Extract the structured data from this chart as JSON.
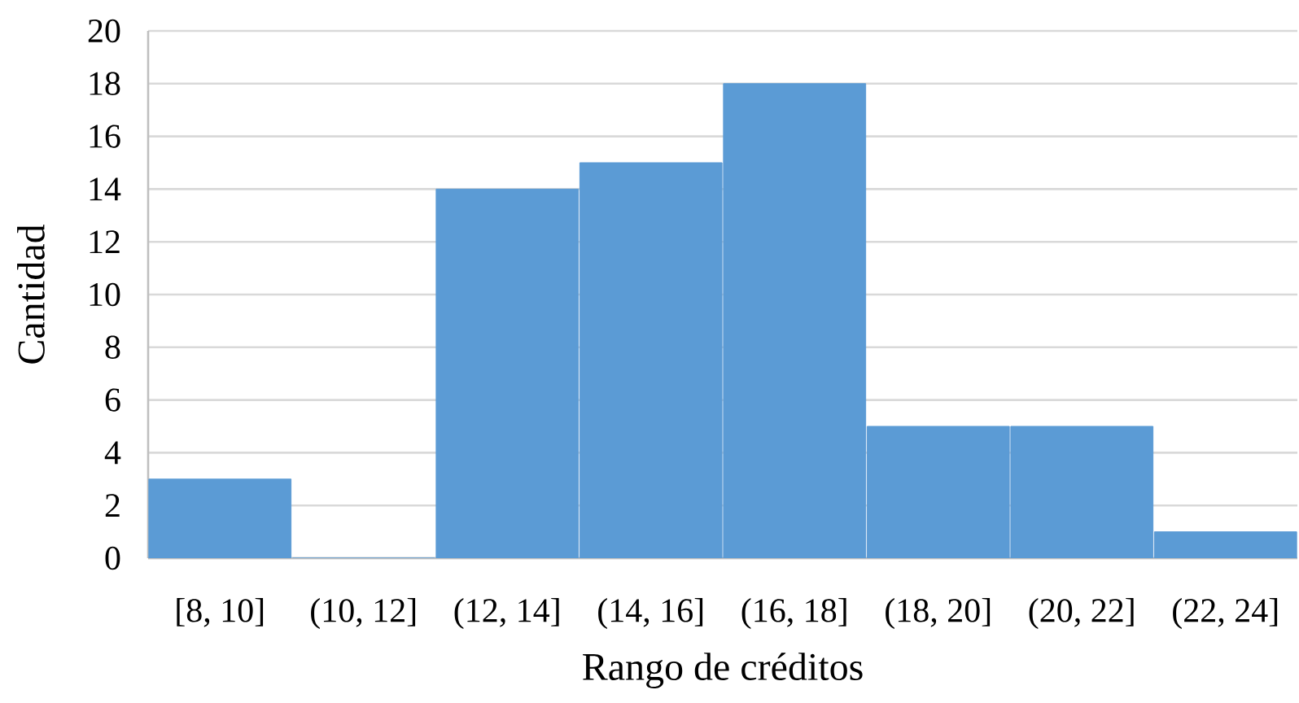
{
  "chart_data": {
    "type": "bar",
    "xlabel": "Rango de créditos",
    "ylabel": "Cantidad",
    "categories": [
      "[8, 10]",
      "(10, 12]",
      "(12, 14]",
      "(14, 16]",
      "(16, 18]",
      "(18, 20]",
      "(20, 22]",
      "(22, 24]"
    ],
    "values": [
      3,
      0,
      14,
      15,
      18,
      5,
      5,
      1
    ],
    "color": "#5b9bd5",
    "ylim": [
      0,
      20
    ],
    "yticks": [
      0,
      2,
      4,
      6,
      8,
      10,
      12,
      14,
      16,
      18,
      20
    ],
    "grid": "y"
  }
}
